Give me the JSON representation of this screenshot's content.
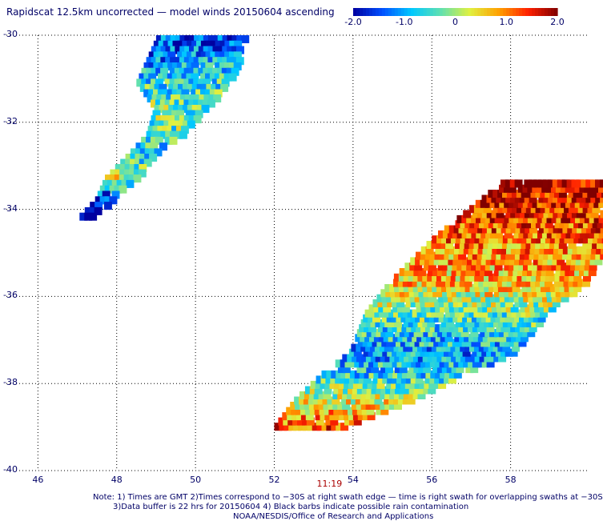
{
  "title": "Rapidscat 12.5km uncorrected — model winds 20150604 ascending",
  "colorbar": {
    "labels": [
      "-2.0",
      "-1.0",
      "0",
      "1.0",
      "2.0"
    ],
    "min": -2.0,
    "max": 2.0,
    "colors": [
      "#0000a0",
      "#0050ff",
      "#00c8ff",
      "#60e0b0",
      "#e0f040",
      "#ffa000",
      "#ff2000",
      "#800000"
    ]
  },
  "notes": {
    "line1": "Note: 1) Times are GMT 2)Times correspond to −30S at right swath edge — time is right swath for overlapping swaths at −30S",
    "line2": "3)Data buffer is 22 hrs for 20150604 4) Black barbs indicate possible rain contamination",
    "line3": "NOAA/NESDIS/Office of Research and Applications"
  },
  "chart_data": {
    "type": "heatmap",
    "title": "Rapidscat 12.5km uncorrected — model winds 20150604 ascending",
    "x_ticks": [
      "46",
      "48",
      "50",
      "52",
      "54",
      "56",
      "58"
    ],
    "y_ticks": [
      "-30",
      "-32",
      "-34",
      "-36",
      "-38",
      "-40"
    ],
    "xlim": [
      45.2,
      60.0
    ],
    "ylim": [
      -40.0,
      -30.0
    ],
    "grid": true,
    "time_labels": [
      {
        "text": "11:19",
        "lon": 53.4
      }
    ],
    "swaths": [
      {
        "segments": [
          {
            "lon": 50.15,
            "lat": -30.0,
            "width": 2.3,
            "bias": -1.5
          },
          {
            "lon": 49.7,
            "lat": -31.0,
            "width": 2.4,
            "bias": -0.6
          },
          {
            "lon": 49.6,
            "lat": -31.6,
            "width": 1.3,
            "bias": -0.2
          },
          {
            "lon": 49.2,
            "lat": -32.2,
            "width": 0.9,
            "bias": -0.3
          },
          {
            "lon": 48.7,
            "lat": -32.6,
            "width": 0.7,
            "bias": -0.9
          },
          {
            "lon": 48.1,
            "lat": -33.2,
            "width": 0.8,
            "bias": 0.2
          },
          {
            "lon": 47.7,
            "lat": -33.7,
            "width": 0.5,
            "bias": -1.6
          },
          {
            "lon": 47.05,
            "lat": -34.2,
            "width": 0.25,
            "bias": -2.0
          }
        ]
      },
      {
        "segments": [
          {
            "lon": 52.9,
            "lat": -38.9,
            "width": 1.8,
            "bias": 1.3
          },
          {
            "lon": 54.0,
            "lat": -38.3,
            "width": 3.0,
            "bias": 0.3
          },
          {
            "lon": 55.0,
            "lat": -37.7,
            "width": 3.6,
            "bias": -0.6
          },
          {
            "lon": 56.0,
            "lat": -37.2,
            "width": 4.2,
            "bias": -1.0
          },
          {
            "lon": 56.6,
            "lat": -36.3,
            "width": 4.6,
            "bias": -0.3
          },
          {
            "lon": 57.4,
            "lat": -35.6,
            "width": 5.0,
            "bias": 0.6
          },
          {
            "lon": 58.3,
            "lat": -34.6,
            "width": 4.6,
            "bias": 1.0
          },
          {
            "lon": 59.3,
            "lat": -33.2,
            "width": 2.8,
            "bias": 1.9
          }
        ]
      }
    ]
  }
}
